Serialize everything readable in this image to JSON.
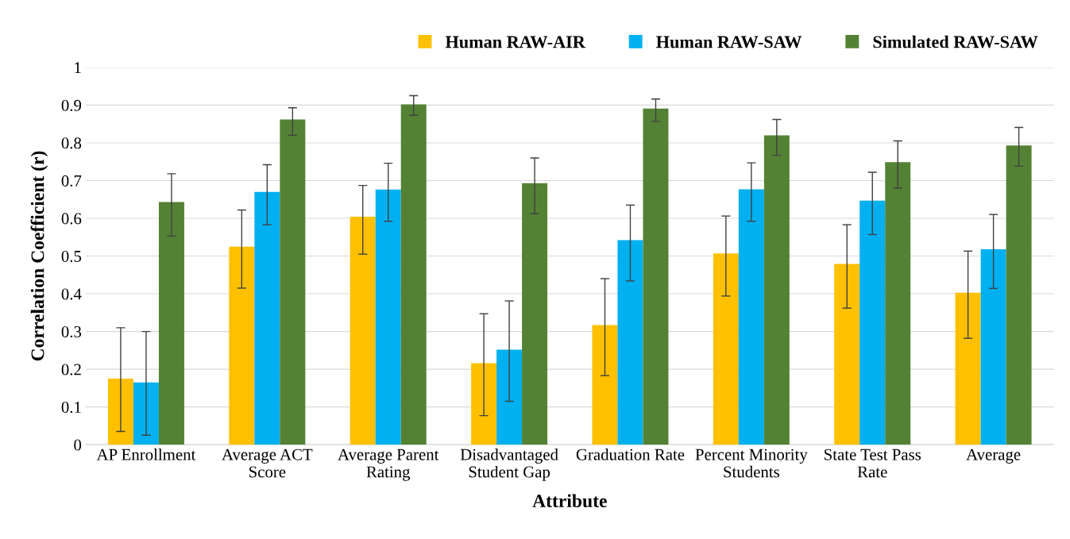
{
  "chart_data": {
    "type": "bar",
    "xlabel": "Attribute",
    "ylabel": "Correlation Coefficient (r)",
    "categories": [
      "AP Enrollment",
      "Average ACT\nScore",
      "Average Parent\nRating",
      "Disadvantaged\nStudent Gap",
      "Graduation Rate",
      "Percent Minority\nStudents",
      "State Test Pass\nRate",
      "Average"
    ],
    "series": [
      {
        "name": "Human RAW-AIR",
        "color": "#ffc000",
        "values": [
          0.175,
          0.525,
          0.604,
          0.216,
          0.317,
          0.507,
          0.479,
          0.403
        ],
        "errors": [
          [
            0.035,
            0.31
          ],
          [
            0.415,
            0.622
          ],
          [
            0.505,
            0.687
          ],
          [
            0.077,
            0.347
          ],
          [
            0.183,
            0.44
          ],
          [
            0.394,
            0.606
          ],
          [
            0.362,
            0.583
          ],
          [
            0.282,
            0.513
          ]
        ]
      },
      {
        "name": "Human RAW-SAW",
        "color": "#00b0f0",
        "values": [
          0.165,
          0.67,
          0.676,
          0.252,
          0.542,
          0.677,
          0.647,
          0.518
        ],
        "errors": [
          [
            0.025,
            0.3
          ],
          [
            0.583,
            0.742
          ],
          [
            0.592,
            0.746
          ],
          [
            0.115,
            0.381
          ],
          [
            0.434,
            0.635
          ],
          [
            0.592,
            0.747
          ],
          [
            0.557,
            0.722
          ],
          [
            0.414,
            0.61
          ]
        ]
      },
      {
        "name": "Simulated RAW-SAW",
        "color": "#548235",
        "values": [
          0.643,
          0.862,
          0.902,
          0.693,
          0.891,
          0.82,
          0.749,
          0.793
        ],
        "errors": [
          [
            0.553,
            0.718
          ],
          [
            0.82,
            0.893
          ],
          [
            0.873,
            0.925
          ],
          [
            0.612,
            0.76
          ],
          [
            0.857,
            0.916
          ],
          [
            0.767,
            0.862
          ],
          [
            0.68,
            0.805
          ],
          [
            0.738,
            0.841
          ]
        ]
      }
    ],
    "ylim": [
      0,
      1
    ],
    "yticks": [
      0,
      0.1,
      0.2,
      0.3,
      0.4,
      0.5,
      0.6,
      0.7,
      0.8,
      0.9,
      1
    ],
    "grid": "y",
    "legend": "top right"
  }
}
